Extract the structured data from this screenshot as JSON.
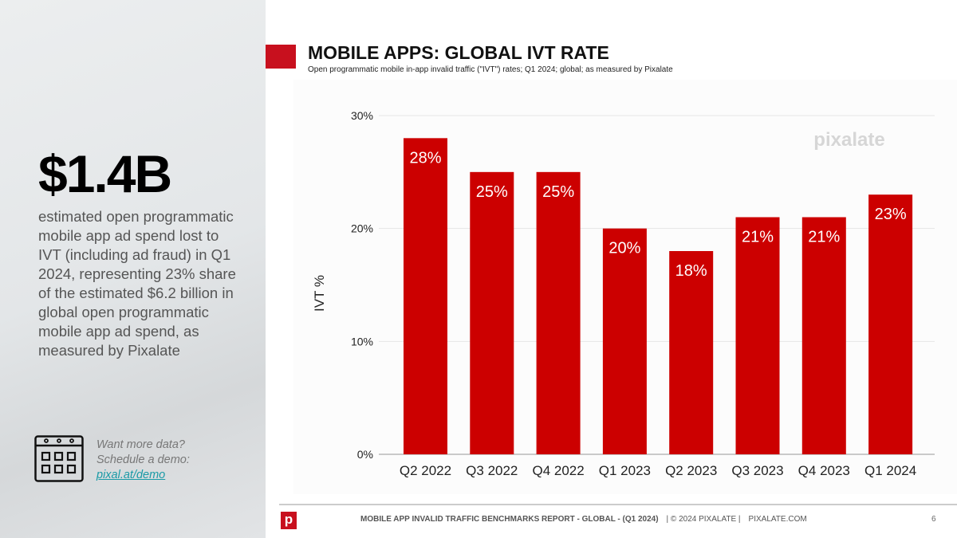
{
  "sidebar": {
    "headline": "$1.4B",
    "description": "estimated open programmatic mobile app ad spend lost to IVT (including ad fraud) in Q1 2024, representing 23% share of the estimated $6.2 billion in global open programmatic mobile app ad spend, as measured by Pixalate",
    "cta_line1": "Want more data?",
    "cta_line2": "Schedule a demo:",
    "cta_link": "pixal.at/demo",
    "icon": "calendar-icon"
  },
  "header": {
    "title": "MOBILE APPS: GLOBAL IVT RATE",
    "subtitle": "Open programmatic mobile in-app invalid traffic (\"IVT\") rates; Q1 2024; global; as measured by Pixalate"
  },
  "chart_data": {
    "type": "bar",
    "categories": [
      "Q2 2022",
      "Q3 2022",
      "Q4 2022",
      "Q1 2023",
      "Q2 2023",
      "Q3 2023",
      "Q4 2023",
      "Q1 2024"
    ],
    "values": [
      28,
      25,
      25,
      20,
      18,
      21,
      21,
      23
    ],
    "data_labels": [
      "28%",
      "25%",
      "25%",
      "20%",
      "18%",
      "21%",
      "21%",
      "23%"
    ],
    "ylabel": "IVT %",
    "ylim": [
      0,
      30
    ],
    "yticks": [
      "0%",
      "10%",
      "20%",
      "30%"
    ],
    "grid": true,
    "bar_color": "#cc0000",
    "watermark": "pixalate"
  },
  "footer": {
    "report": "MOBILE APP INVALID TRAFFIC BENCHMARKS REPORT - GLOBAL -  (Q1 2024)",
    "copyright": "|   © 2024 PIXALATE   |",
    "site": "PIXALATE.COM",
    "page": "6",
    "logo": "p"
  }
}
